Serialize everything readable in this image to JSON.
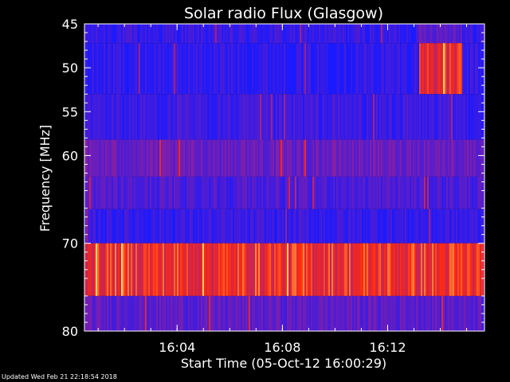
{
  "footer": {
    "updated": "Updated Wed Feb 21 22:18:54 2018"
  },
  "chart_data": {
    "type": "heatmap",
    "title": "Solar radio Flux (Glasgow)",
    "xlabel": "Start Time (05-Oct-12 16:00:29)",
    "ylabel": "Frequency [MHz]",
    "x_unit": "minutes after 16:00:29",
    "xlim": [
      0,
      15.2
    ],
    "ylim": [
      80,
      45
    ],
    "y_scale": "linear, reversed (low frequency at top)",
    "x_ticks": [
      {
        "label": "16:04",
        "value": 3.52
      },
      {
        "label": "16:08",
        "value": 7.52
      },
      {
        "label": "16:12",
        "value": 11.52
      }
    ],
    "y_ticks": [
      {
        "label": "45",
        "value": 45
      },
      {
        "label": "50",
        "value": 50
      },
      {
        "label": "55",
        "value": 55
      },
      {
        "label": "60",
        "value": 60
      },
      {
        "label": "70",
        "value": 70
      },
      {
        "label": "80",
        "value": 80
      }
    ],
    "bands": [
      {
        "from": 45.0,
        "to": 47.2,
        "level": 0.12
      },
      {
        "from": 47.2,
        "to": 53.0,
        "level": 0.1
      },
      {
        "from": 53.0,
        "to": 58.2,
        "level": 0.14
      },
      {
        "from": 58.2,
        "to": 62.4,
        "level": 0.35
      },
      {
        "from": 62.4,
        "to": 66.1,
        "level": 0.22
      },
      {
        "from": 66.1,
        "to": 70.0,
        "level": 0.12
      },
      {
        "from": 70.0,
        "to": 76.0,
        "level": 0.8
      },
      {
        "from": 76.0,
        "to": 80.0,
        "level": 0.3
      }
    ],
    "burst_patches": [
      {
        "x_from": 12.7,
        "x_to": 14.3,
        "f_from": 47.2,
        "f_to": 53.0,
        "level": 0.78
      },
      {
        "x_from": 12.7,
        "x_to": 14.3,
        "f_from": 45.0,
        "f_to": 47.2,
        "level": 0.32
      }
    ],
    "color_scale": {
      "low": "#1a1aff",
      "mid": "#8a1fa0",
      "high": "#ff2a10",
      "peak": "#ffd060"
    },
    "grid": false
  }
}
